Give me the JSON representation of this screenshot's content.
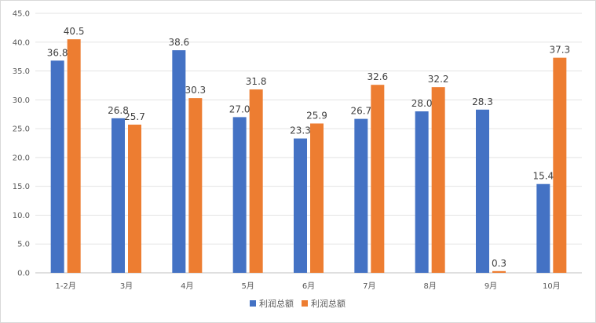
{
  "chart_data": {
    "type": "bar",
    "categories": [
      "1-2月",
      "3月",
      "4月",
      "5月",
      "6月",
      "7月",
      "8月",
      "9月",
      "10月"
    ],
    "series": [
      {
        "name": "利润总额",
        "color": "#4472C4",
        "values": [
          36.8,
          26.8,
          38.6,
          27.0,
          23.3,
          26.7,
          28.0,
          28.3,
          15.4
        ]
      },
      {
        "name": "利润总额",
        "color": "#ED7D31",
        "values": [
          40.5,
          25.7,
          30.3,
          31.8,
          25.9,
          32.6,
          32.2,
          0.3,
          37.3
        ]
      }
    ],
    "ylim": [
      0,
      45
    ],
    "yticks": [
      "0.0",
      "5.0",
      "10.0",
      "15.0",
      "20.0",
      "25.0",
      "30.0",
      "35.0",
      "40.0",
      "45.0"
    ],
    "grid": true,
    "legend_position": "bottom",
    "value_decimals": 1
  }
}
